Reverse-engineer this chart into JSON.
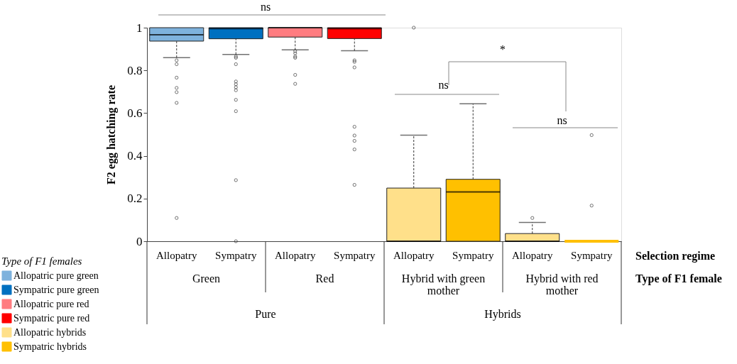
{
  "chart_data": {
    "type": "box",
    "ylabel": "F2 egg hatching rate",
    "legend_title": "Type of F1 females",
    "categories": [
      "Allopatry",
      "Sympatry",
      "Allopatry",
      "Sympatry",
      "Allopatry",
      "Sympatry",
      "Allopatry",
      "Sympatry"
    ],
    "ylim": [
      0,
      1
    ],
    "yticks": [
      0,
      0.2,
      0.4,
      0.6,
      0.8,
      1
    ],
    "grid": false,
    "legend": "bottom left",
    "series": [
      {
        "name": "Allopatric pure green",
        "color": "#7eb2dd",
        "boxes": [
          {
            "low": 0.86,
            "q1": 0.937,
            "median": 0.967,
            "q3": 1,
            "high": 1,
            "outliers": [
              0.847,
              0.829,
              0.766,
              0.718,
              0.698,
              0.648,
              0.109
            ]
          },
          null,
          null,
          null,
          null,
          null,
          null,
          null
        ]
      },
      {
        "name": "Sympatric pure green",
        "color": "#0070c0",
        "boxes": [
          null,
          {
            "low": 0.875,
            "q1": 0.948,
            "median": 0.996,
            "q3": 1,
            "high": 1,
            "outliers": [
              0.865,
              0.859,
              0.829,
              0.748,
              0.735,
              0.721,
              0.707,
              0.662,
              0.609,
              0.286,
              0
            ]
          },
          null,
          null,
          null,
          null,
          null,
          null
        ]
      },
      {
        "name": "Allopatric pure red",
        "color": "#ff7c80",
        "boxes": [
          null,
          null,
          {
            "low": 0.896,
            "q1": 0.956,
            "median": 1,
            "q3": 1,
            "high": 1,
            "outliers": [
              0.89,
              0.88,
              0.865,
              0.859,
              0.779,
              0.737
            ]
          },
          null,
          null,
          null,
          null,
          null
        ]
      },
      {
        "name": "Sympatric pure red",
        "color": "#ff0000",
        "boxes": [
          null,
          null,
          null,
          {
            "low": 0.892,
            "q1": 0.949,
            "median": 0.996,
            "q3": 1,
            "high": 1,
            "outliers": [
              0.847,
              0.84,
              0.814,
              0.536,
              0.495,
              0.47,
              0.43,
              0.264
            ]
          },
          null,
          null,
          null,
          null
        ]
      },
      {
        "name": "Allopatric hybrids",
        "color": "#ffe08a",
        "boxes": [
          null,
          null,
          null,
          null,
          {
            "low": 0,
            "q1": 0,
            "median": 0,
            "q3": 0.249,
            "high": 0.497,
            "outliers": [
              1
            ]
          },
          null,
          {
            "low": 0,
            "q1": 0,
            "median": 0,
            "q3": 0.036,
            "high": 0.088,
            "outliers": [
              0.109
            ]
          },
          null
        ]
      },
      {
        "name": "Sympatric hybrids",
        "color": "#ffc000",
        "boxes": [
          null,
          null,
          null,
          null,
          null,
          {
            "low": 0,
            "q1": 0,
            "median": 0.231,
            "q3": 0.29,
            "high": 0.644
          },
          null,
          {
            "low": 0,
            "q1": 0,
            "median": 0,
            "q3": 0,
            "high": 0,
            "outliers": [
              0.497,
              0.167
            ]
          }
        ]
      }
    ],
    "annotations": [
      "Selection regime",
      "Type of F1 female",
      "Green",
      "Red",
      "Hybrid with green mother",
      "Hybrid with red mother",
      "Pure",
      "Hybrids",
      "ns",
      "ns",
      "ns",
      "*"
    ]
  }
}
